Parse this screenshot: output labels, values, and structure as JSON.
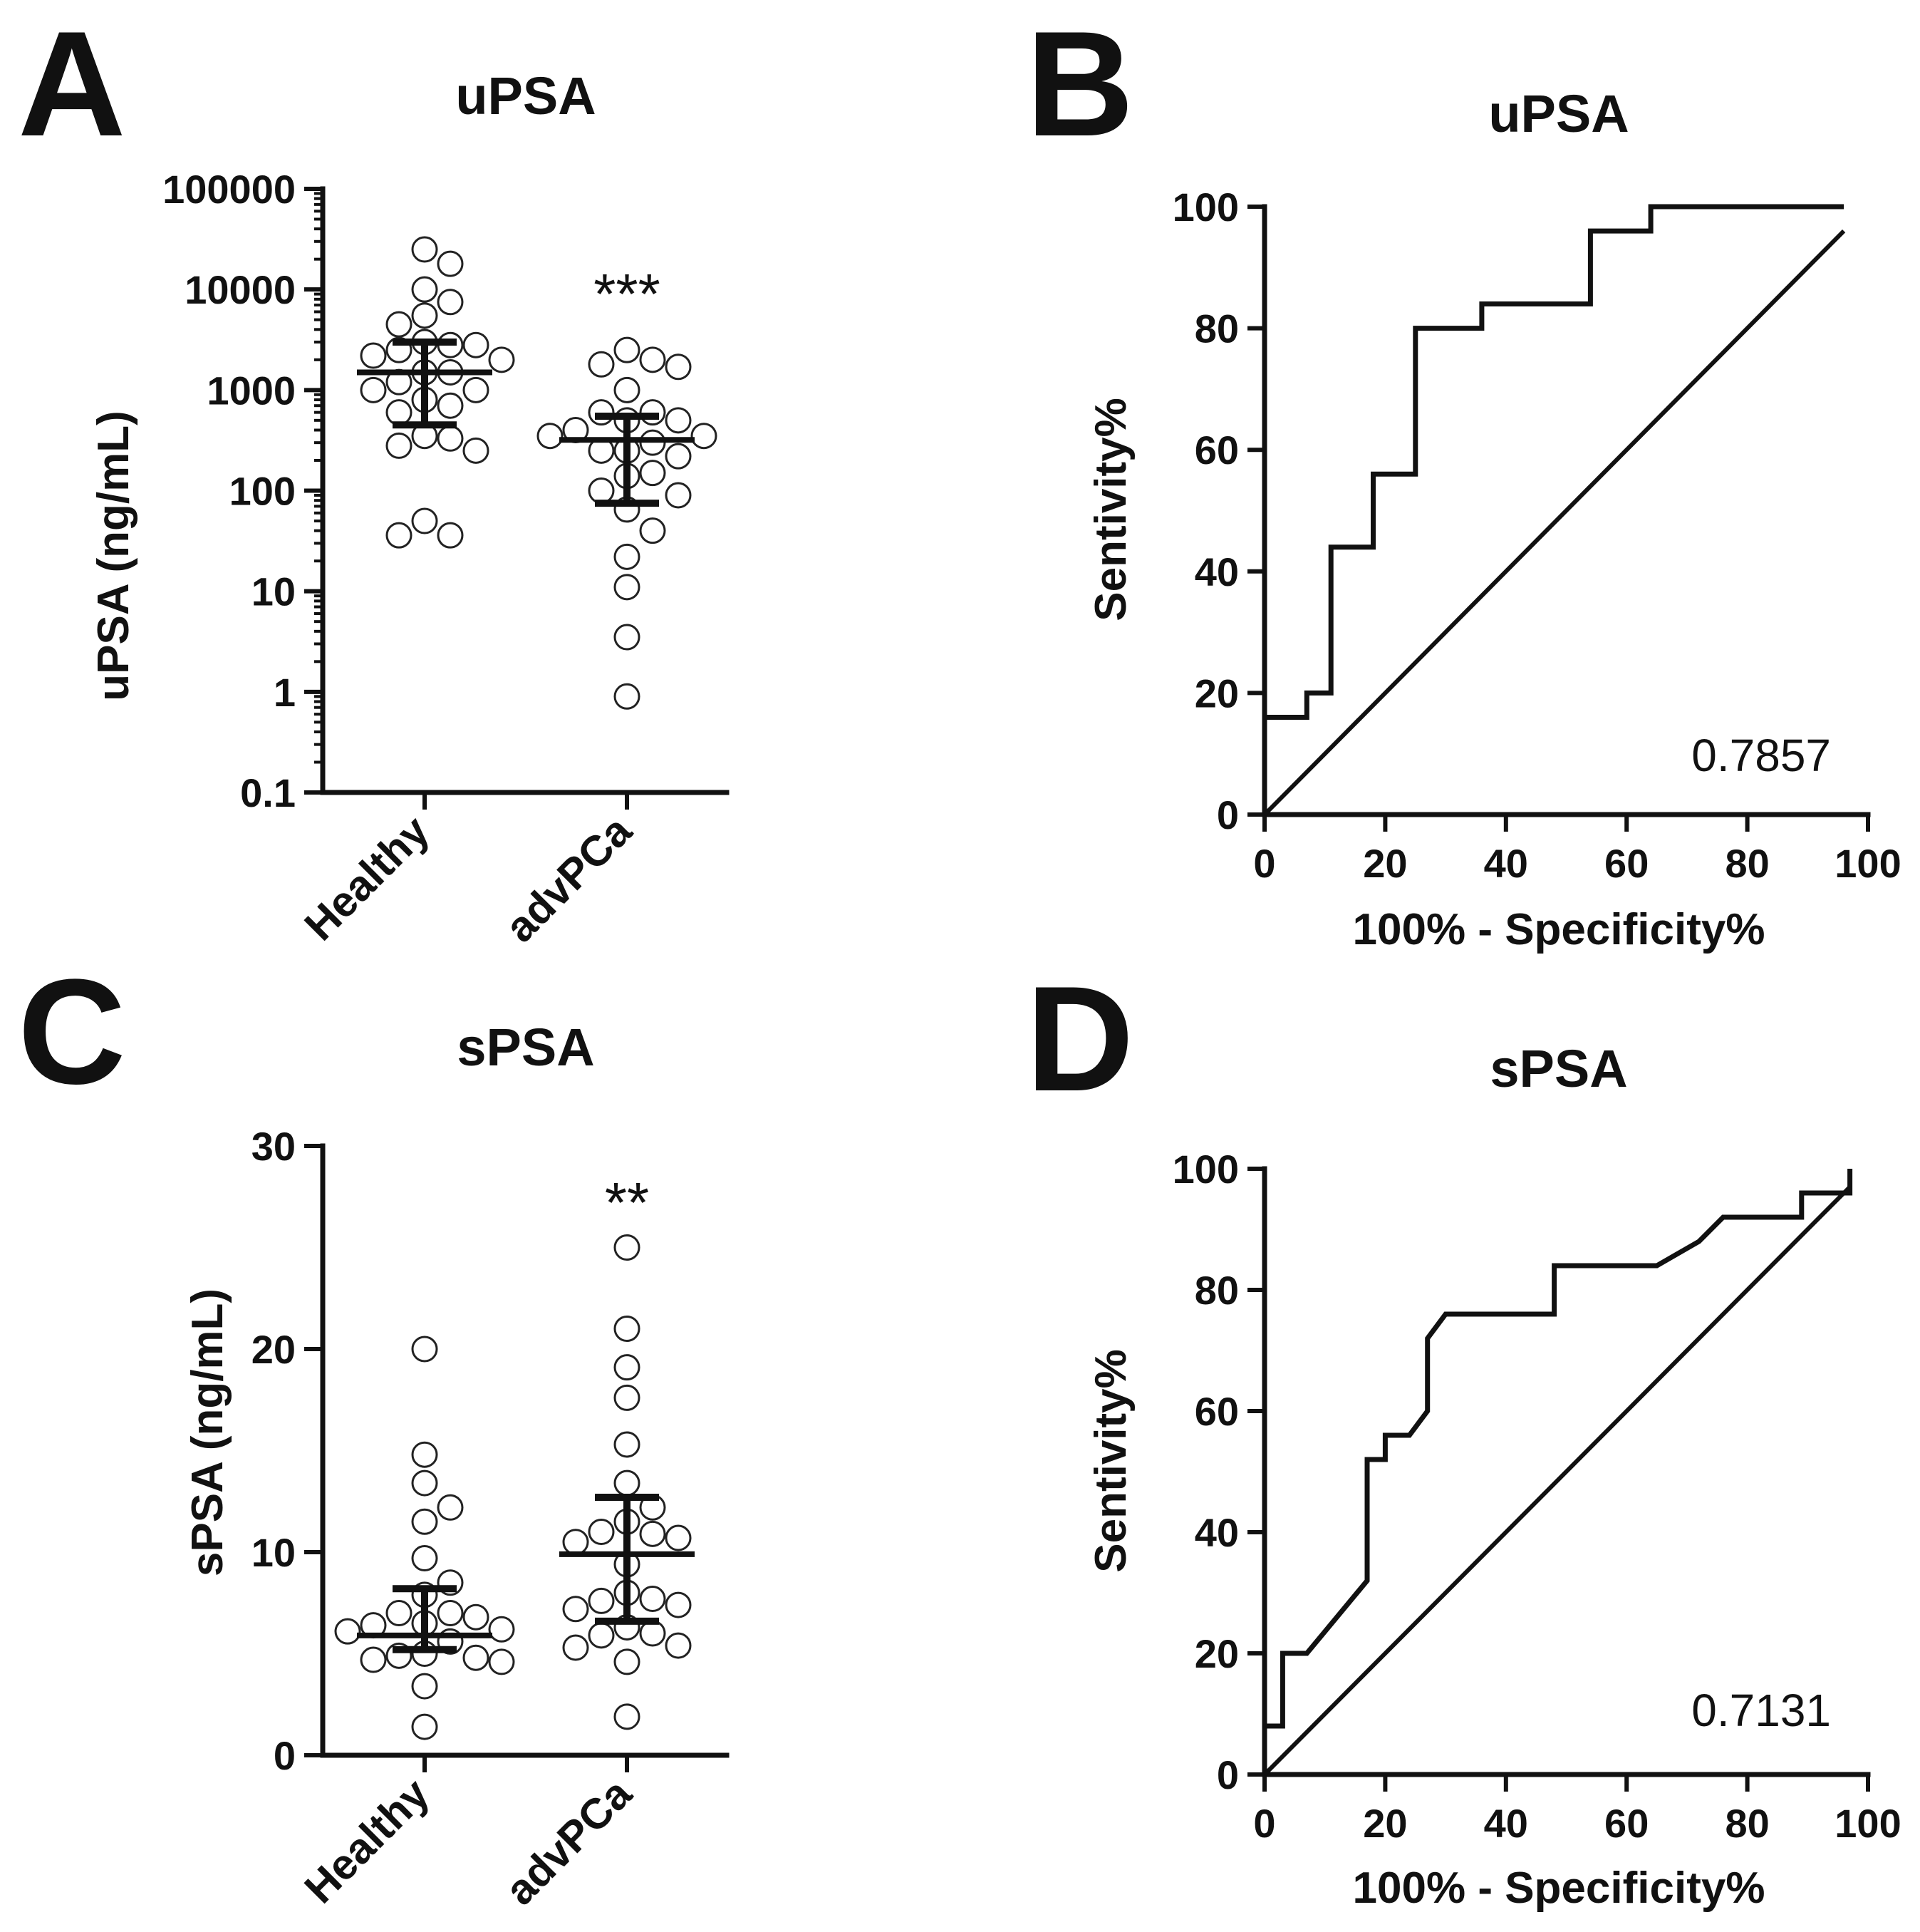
{
  "chart_data": [
    {
      "panel": "A",
      "type": "scatter",
      "title": "uPSA",
      "ylabel": "uPSA (ng/mL)",
      "yscale": "log",
      "ylim": [
        0.1,
        100000
      ],
      "yticks": [
        "0.1",
        "1",
        "10",
        "100",
        "1000",
        "10000",
        "100000"
      ],
      "categories": [
        "Healthy",
        "advPCa"
      ],
      "significance": "***",
      "groups": [
        {
          "name": "Healthy",
          "values": [
            25000,
            18000,
            10000,
            7500,
            5500,
            4500,
            3000,
            2800,
            2800,
            2500,
            2200,
            2000,
            1500,
            1500,
            1200,
            1000,
            1000,
            800,
            700,
            600,
            350,
            330,
            280,
            250,
            50,
            36,
            36
          ],
          "median": 1500,
          "iqr": [
            450,
            3000
          ]
        },
        {
          "name": "advPCa",
          "values": [
            2500,
            2000,
            1800,
            1700,
            1000,
            600,
            600,
            500,
            500,
            400,
            350,
            350,
            300,
            250,
            250,
            220,
            150,
            140,
            100,
            90,
            65,
            40,
            22,
            11,
            3.5,
            0.9
          ],
          "median": 320,
          "iqr": [
            75,
            550
          ]
        }
      ]
    },
    {
      "panel": "B",
      "type": "line",
      "title": "uPSA",
      "xlabel": "100% - Specificity%",
      "ylabel": "Sentivity%",
      "xlim": [
        0,
        100
      ],
      "ylim": [
        0,
        100
      ],
      "xticks": [
        "0",
        "20",
        "40",
        "60",
        "80",
        "100"
      ],
      "yticks": [
        "0",
        "20",
        "40",
        "60",
        "80",
        "100"
      ],
      "auc": "0.7857",
      "series": [
        {
          "name": "ROC",
          "x": [
            0,
            0,
            7,
            7,
            11,
            11,
            18,
            18,
            25,
            25,
            36,
            36,
            54,
            54,
            64,
            64,
            96
          ],
          "y": [
            0,
            16,
            16,
            20,
            20,
            44,
            44,
            56,
            56,
            80,
            80,
            84,
            84,
            96,
            96,
            100,
            100
          ]
        },
        {
          "name": "Reference",
          "x": [
            0,
            96
          ],
          "y": [
            0,
            96
          ]
        }
      ]
    },
    {
      "panel": "C",
      "type": "scatter",
      "title": "sPSA",
      "ylabel": "sPSA (ng/mL)",
      "ylim": [
        0,
        30
      ],
      "yticks": [
        "0",
        "10",
        "20",
        "30"
      ],
      "categories": [
        "Healthy",
        "advPCa"
      ],
      "significance": "**",
      "groups": [
        {
          "name": "Healthy",
          "values": [
            20,
            14.8,
            13.4,
            12.2,
            11.5,
            9.7,
            8.5,
            7.9,
            7.0,
            7.0,
            6.8,
            6.5,
            6.4,
            6.2,
            6.1,
            5.6,
            5.0,
            4.9,
            4.8,
            4.7,
            4.6,
            3.4,
            1.4
          ],
          "median": 5.9,
          "iqr": [
            5.2,
            8.2
          ]
        },
        {
          "name": "advPCa",
          "values": [
            25,
            21,
            19.1,
            17.6,
            15.3,
            13.4,
            12.2,
            11.5,
            11.0,
            10.9,
            10.7,
            10.5,
            9.4,
            8.0,
            7.7,
            7.6,
            7.4,
            7.2,
            6.3,
            6.0,
            5.9,
            5.4,
            5.3,
            4.6,
            1.9
          ],
          "median": 9.9,
          "iqr": [
            6.6,
            12.7
          ]
        }
      ]
    },
    {
      "panel": "D",
      "type": "line",
      "title": "sPSA",
      "xlabel": "100% - Specificity%",
      "ylabel": "Sentivity%",
      "xlim": [
        0,
        100
      ],
      "ylim": [
        0,
        100
      ],
      "xticks": [
        "0",
        "20",
        "40",
        "60",
        "80",
        "100"
      ],
      "yticks": [
        "0",
        "20",
        "40",
        "60",
        "80",
        "100"
      ],
      "auc": "0.7131",
      "series": [
        {
          "name": "ROC",
          "x": [
            0,
            0,
            3,
            3,
            7,
            17,
            17,
            20,
            20,
            23,
            24,
            27,
            27,
            30,
            31,
            48,
            48,
            65,
            72,
            76,
            89,
            89,
            97,
            97
          ],
          "y": [
            0,
            8,
            8,
            20,
            20,
            32,
            52,
            52,
            56,
            56,
            56,
            60,
            72,
            76,
            76,
            76,
            84,
            84,
            88,
            92,
            92,
            96,
            96,
            100
          ]
        },
        {
          "name": "Reference",
          "x": [
            0,
            97
          ],
          "y": [
            0,
            97
          ]
        }
      ]
    }
  ]
}
